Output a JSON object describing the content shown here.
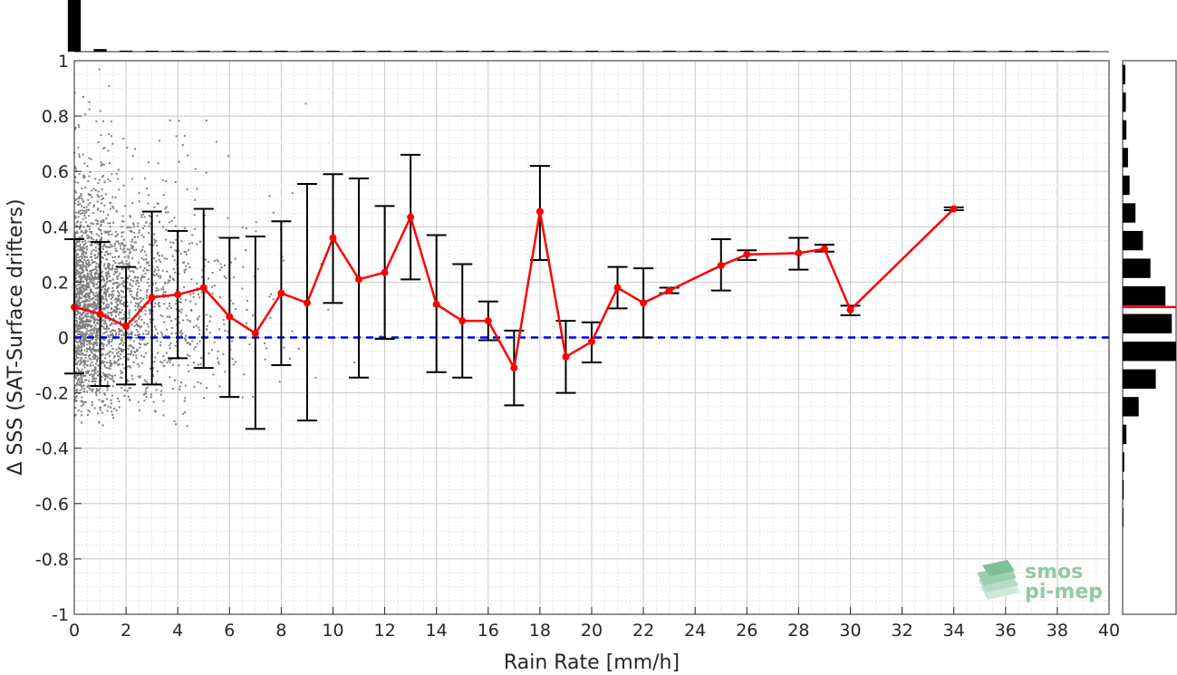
{
  "chart_data": {
    "type": "line",
    "xlabel": "Rain Rate [mm/h]",
    "ylabel": "Δ SSS (SAT-Surface drifters)",
    "xlim": [
      0,
      40
    ],
    "ylim": [
      -1,
      1
    ],
    "x_ticks": [
      "0",
      "2",
      "4",
      "6",
      "8",
      "10",
      "12",
      "14",
      "16",
      "18",
      "20",
      "22",
      "24",
      "26",
      "28",
      "30",
      "32",
      "34",
      "36",
      "38",
      "40"
    ],
    "y_ticks": [
      "-1",
      "-0.8",
      "-0.6",
      "-0.4",
      "-0.2",
      "0",
      "0.2",
      "0.4",
      "0.6",
      "0.8",
      "1"
    ],
    "grid": true,
    "reference_line": {
      "y": 0,
      "color": "#0000e0",
      "style": "dashed"
    },
    "series": [
      {
        "color": "#ff0000",
        "x": [
          0,
          1,
          2,
          3,
          4,
          5,
          6,
          7,
          8,
          9,
          10,
          11,
          12,
          13,
          14,
          15,
          16,
          17,
          18,
          19,
          20,
          21,
          22,
          23,
          25,
          26,
          28,
          29,
          30,
          34
        ],
        "y": [
          0.11,
          0.085,
          0.04,
          0.145,
          0.155,
          0.18,
          0.075,
          0.015,
          0.16,
          0.125,
          0.36,
          0.21,
          0.235,
          0.435,
          0.12,
          0.06,
          0.06,
          -0.11,
          0.455,
          -0.07,
          -0.015,
          0.18,
          0.125,
          0.17,
          0.26,
          0.3,
          0.305,
          0.32,
          0.1,
          0.465
        ],
        "y_low": [
          -0.13,
          -0.175,
          -0.17,
          -0.17,
          -0.075,
          -0.11,
          -0.215,
          -0.33,
          -0.1,
          -0.3,
          0.125,
          -0.145,
          -0.005,
          0.21,
          -0.125,
          -0.145,
          -0.01,
          -0.245,
          0.28,
          -0.2,
          -0.09,
          0.105,
          0.0,
          0.16,
          0.17,
          0.28,
          0.245,
          0.31,
          0.08,
          0.46
        ],
        "y_high": [
          0.355,
          0.345,
          0.255,
          0.455,
          0.385,
          0.465,
          0.36,
          0.365,
          0.42,
          0.555,
          0.59,
          0.575,
          0.475,
          0.66,
          0.37,
          0.265,
          0.13,
          0.025,
          0.62,
          0.06,
          0.055,
          0.255,
          0.25,
          0.18,
          0.355,
          0.315,
          0.36,
          0.335,
          0.115,
          0.47
        ]
      }
    ],
    "scatter_cloud": {
      "color": "#808080",
      "x_range": [
        0,
        20
      ],
      "y_range": [
        -0.3,
        1
      ]
    },
    "top_histogram": {
      "axis": "Rain Rate [mm/h]",
      "relative_heights": [
        1.0,
        0.05,
        0.02,
        0.015,
        0.012,
        0.01,
        0.01,
        0.008,
        0.008,
        0.007,
        0.006,
        0.006,
        0.005,
        0.005,
        0.005,
        0.004,
        0.004,
        0.004,
        0.004,
        0.003,
        0.003,
        0.003,
        0.002,
        0.002,
        0.002,
        0.002,
        0.002,
        0.002,
        0.002,
        0.002,
        0.002,
        0.002,
        0.002,
        0.002,
        0.001,
        0.001,
        0.001,
        0.001,
        0.001,
        0.001
      ]
    },
    "right_histogram": {
      "bin_centers": [
        0.95,
        0.85,
        0.75,
        0.65,
        0.55,
        0.45,
        0.35,
        0.25,
        0.15,
        0.05,
        -0.05,
        -0.15,
        -0.25,
        -0.35,
        -0.45,
        -0.55,
        -0.65
      ],
      "relative_widths": [
        0.05,
        0.06,
        0.07,
        0.1,
        0.13,
        0.24,
        0.38,
        0.52,
        0.8,
        0.92,
        1.0,
        0.62,
        0.3,
        0.07,
        0.03,
        0.02,
        0.015
      ],
      "mean_marker": {
        "y": 0.11,
        "color": "#ff0000"
      }
    }
  },
  "logo": {
    "line1": "smos",
    "line2": "pi-mep"
  }
}
